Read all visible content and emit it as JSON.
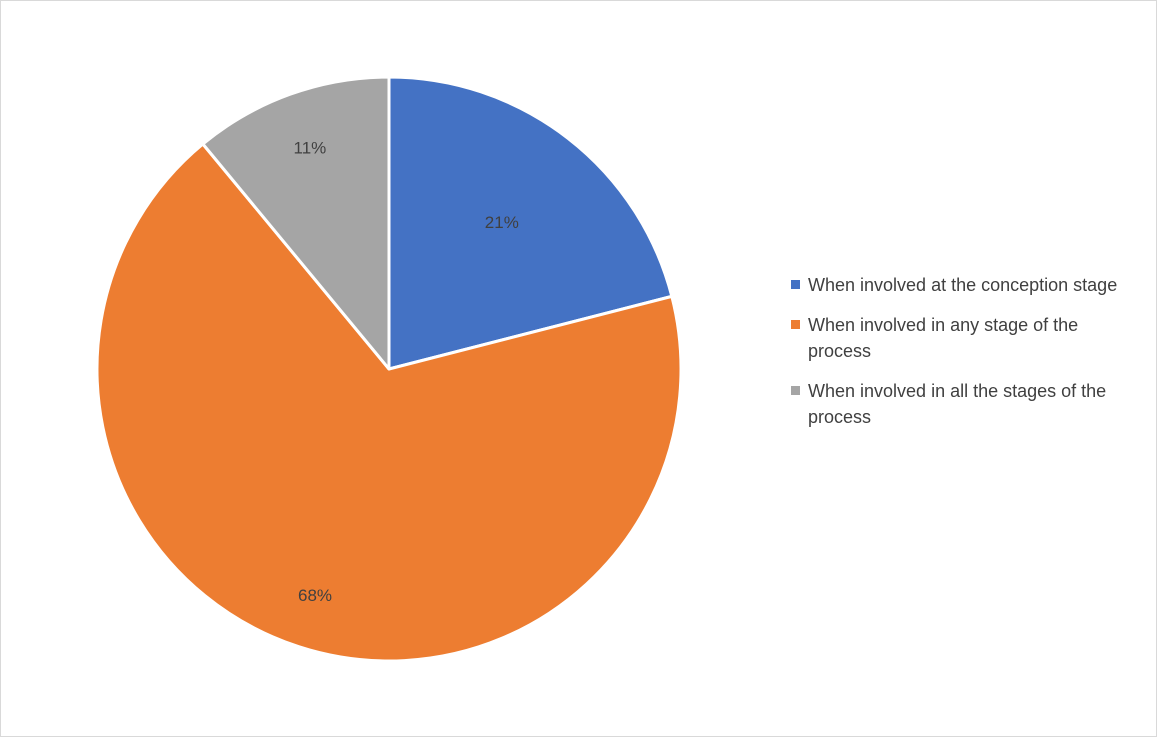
{
  "chart_data": {
    "type": "pie",
    "title": "",
    "categories": [
      "When involved at the conception stage",
      "When involved in any stage of the process",
      "When involved in all the stages of the process"
    ],
    "values": [
      21,
      68,
      11
    ],
    "value_labels": [
      "21%",
      "68%",
      "11%"
    ],
    "colors": [
      "#4472C4",
      "#ED7D31",
      "#A5A5A5"
    ],
    "slice_border_color": "#FFFFFF",
    "start_angle_deg": 0,
    "direction": "clockwise",
    "legend_position": "right"
  }
}
